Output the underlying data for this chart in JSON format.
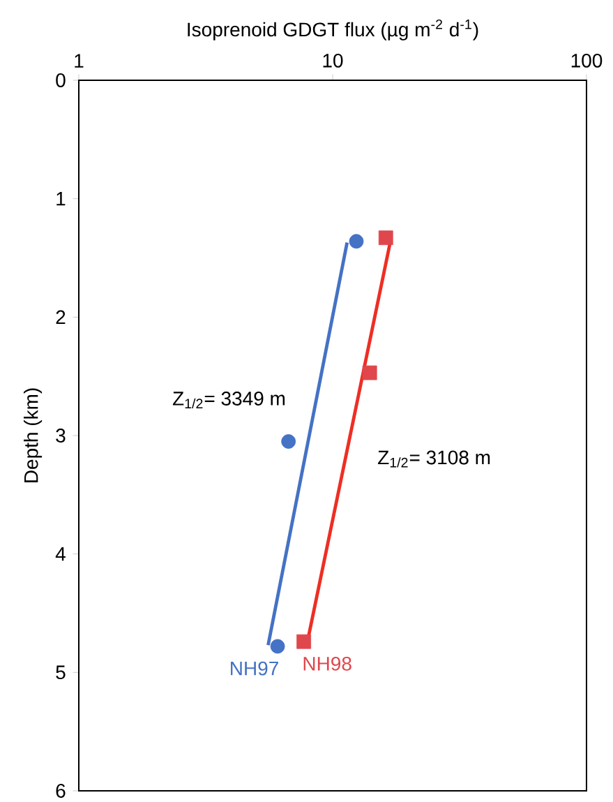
{
  "chart_data": {
    "type": "scatter",
    "xlabel": "Isoprenoid GDGT flux (µg m$^{-2}$ d$^{-1}$)",
    "ylabel": "Depth (km)",
    "log": "x",
    "xlim": [
      1,
      100
    ],
    "xticks": [
      1,
      10,
      100
    ],
    "ylim": [
      6,
      0
    ],
    "yticks": [
      0,
      1,
      2,
      3,
      4,
      5,
      6
    ],
    "grid": false,
    "legend": "bottom",
    "series": [
      {
        "name": "NH97",
        "marker": "circle",
        "color": "#4472c4",
        "x": [
          12.4,
          6.7,
          6.07
        ],
        "values": [
          1.36,
          3.05,
          4.78
        ]
      },
      {
        "name": "NH98",
        "marker": "square",
        "color": "#e0474c",
        "x": [
          16.2,
          14.0,
          7.7
        ],
        "values": [
          1.33,
          2.47,
          4.74
        ]
      },
      {
        "type": "line",
        "color": "#4472c4",
        "x": [
          11.4,
          5.57
        ],
        "values": [
          1.37,
          4.77
        ]
      },
      {
        "type": "line",
        "color": "#ee2e24",
        "x": [
          17.0,
          7.94
        ],
        "values": [
          1.33,
          4.75
        ]
      }
    ],
    "annotations": [
      "Z$_{1/2}$= 3349 m",
      "Z$_{1/2}$= 3108 m"
    ]
  }
}
